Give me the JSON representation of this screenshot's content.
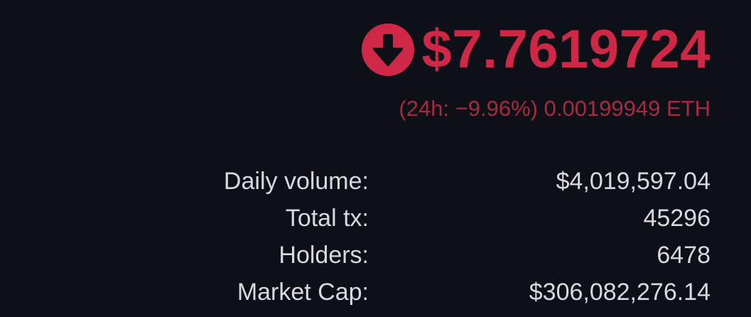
{
  "colors": {
    "background": "#0d1117",
    "negative": "#cf2847",
    "negative_muted": "#a82a41",
    "text": "#d6d9de"
  },
  "price": {
    "icon": "arrow-down-circle-icon",
    "value": "$7.7619724",
    "change_line": "(24h: −9.96%) 0.00199949 ETH"
  },
  "stats": [
    {
      "label": "Daily volume:",
      "value": "$4,019,597.04"
    },
    {
      "label": "Total tx:",
      "value": "45296"
    },
    {
      "label": "Holders:",
      "value": "6478"
    },
    {
      "label": "Market Cap:",
      "value": "$306,082,276.14"
    }
  ]
}
